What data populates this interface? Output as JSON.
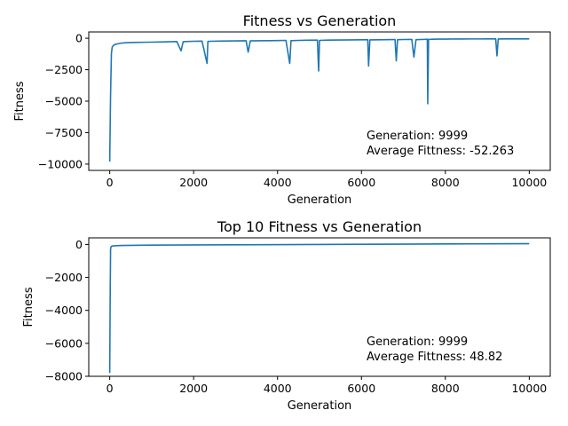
{
  "chart_data": [
    {
      "type": "line",
      "title": "Fitness vs Generation",
      "xlabel": "Generation",
      "ylabel": "Fitness",
      "xlim": [
        -500,
        10500
      ],
      "ylim": [
        -10500,
        500
      ],
      "xticks": [
        0,
        2000,
        4000,
        6000,
        8000,
        10000
      ],
      "xtick_labels": [
        "0",
        "2000",
        "4000",
        "6000",
        "8000",
        "10000"
      ],
      "yticks": [
        0,
        -2500,
        -5000,
        -7500,
        -10000
      ],
      "ytick_labels": [
        "0",
        "−2500",
        "−5000",
        "−7500",
        "−10000"
      ],
      "grid": false,
      "color": "#1f77b4",
      "annotation": [
        "Generation: 9999",
        "Average Fittness: -52.263"
      ],
      "series": [
        {
          "x": [
            0,
            20,
            40,
            60,
            80,
            120,
            180,
            250,
            400,
            600,
            800,
            1000,
            1200,
            1400,
            1600,
            1700,
            1750,
            1800,
            2000,
            2200,
            2320,
            2340,
            2400,
            2600,
            2800,
            3000,
            3250,
            3300,
            3350,
            3500,
            3800,
            4000,
            4200,
            4290,
            4300,
            4320,
            4500,
            4700,
            4950,
            4980,
            5000,
            5200,
            5500,
            5800,
            6000,
            6150,
            6170,
            6200,
            6400,
            6600,
            6800,
            6830,
            6860,
            7000,
            7200,
            7250,
            7300,
            7500,
            7570,
            7580,
            7600,
            7700,
            7800,
            8000,
            8200,
            8400,
            8600,
            8800,
            9000,
            9200,
            9230,
            9260,
            9400,
            9600,
            9800,
            9999
          ],
          "y": [
            -9800,
            -4500,
            -1200,
            -700,
            -600,
            -500,
            -450,
            -400,
            -350,
            -330,
            -320,
            -310,
            -300,
            -280,
            -260,
            -1000,
            -280,
            -260,
            -240,
            -230,
            -2000,
            -250,
            -240,
            -230,
            -220,
            -210,
            -200,
            -1100,
            -210,
            -200,
            -190,
            -180,
            -170,
            -2000,
            -1500,
            -190,
            -170,
            -160,
            -150,
            -2600,
            -170,
            -150,
            -140,
            -130,
            -120,
            -110,
            -2200,
            -130,
            -120,
            -110,
            -100,
            -1800,
            -110,
            -100,
            -90,
            -1500,
            -110,
            -90,
            -80,
            -5200,
            -90,
            -80,
            -70,
            -70,
            -60,
            -60,
            -55,
            -55,
            -50,
            -50,
            -1400,
            -60,
            -50,
            -50,
            -50,
            -52
          ]
        }
      ]
    },
    {
      "type": "line",
      "title": "Top 10 Fitness vs Generation",
      "xlabel": "Generation",
      "ylabel": "Fitness",
      "xlim": [
        -500,
        10500
      ],
      "ylim": [
        -8000,
        400
      ],
      "xticks": [
        0,
        2000,
        4000,
        6000,
        8000,
        10000
      ],
      "xtick_labels": [
        "0",
        "2000",
        "4000",
        "6000",
        "8000",
        "10000"
      ],
      "yticks": [
        0,
        -2000,
        -4000,
        -6000,
        -8000
      ],
      "ytick_labels": [
        "0",
        "−2000",
        "−4000",
        "−6000",
        "−8000"
      ],
      "grid": false,
      "color": "#1f77b4",
      "annotation": [
        "Generation: 9999",
        "Average Fittness: 48.82"
      ],
      "series": [
        {
          "x": [
            0,
            10,
            20,
            30,
            50,
            100,
            300,
            1000,
            3000,
            5000,
            7000,
            9000,
            9999
          ],
          "y": [
            -7800,
            -3500,
            -300,
            -150,
            -100,
            -80,
            -60,
            -40,
            -20,
            0,
            20,
            40,
            49
          ]
        }
      ]
    }
  ]
}
